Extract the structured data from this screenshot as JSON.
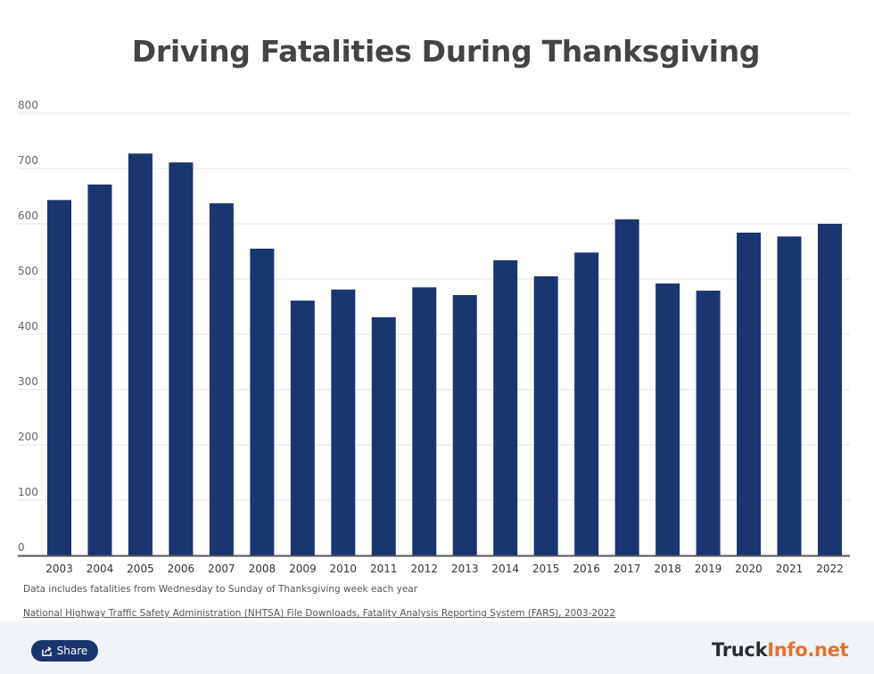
{
  "chart_data": {
    "type": "bar",
    "title": "Driving Fatalities During Thanksgiving",
    "xlabel": "",
    "ylabel": "",
    "ylim": [
      0,
      800
    ],
    "yticks": [
      0,
      100,
      200,
      300,
      400,
      500,
      600,
      700,
      800
    ],
    "grid": true,
    "legend": "none",
    "categories": [
      "2003",
      "2004",
      "2005",
      "2006",
      "2007",
      "2008",
      "2009",
      "2010",
      "2011",
      "2012",
      "2013",
      "2014",
      "2015",
      "2016",
      "2017",
      "2018",
      "2019",
      "2020",
      "2021",
      "2022"
    ],
    "values": [
      643,
      671,
      727,
      711,
      637,
      555,
      461,
      481,
      431,
      485,
      471,
      534,
      505,
      548,
      608,
      492,
      479,
      584,
      577,
      600
    ],
    "bar_color": "#1b3570"
  },
  "notes": {
    "description": "Data includes fatalities from Wednesday to Sunday of Thanksgiving week each year",
    "source": "National Highway Traffic Safety Administration (NHTSA) File Downloads, Fatality Analysis Reporting System (FARS), 2003-2022"
  },
  "footer": {
    "share_label": "Share",
    "share_icon": "share-icon",
    "logo_part1": "Truck",
    "logo_part2": "Info.net",
    "colors": {
      "brand_dark": "#2d2d2d",
      "brand_orange": "#e8702a",
      "button": "#1a3470",
      "background": "#f1f4f8"
    }
  }
}
